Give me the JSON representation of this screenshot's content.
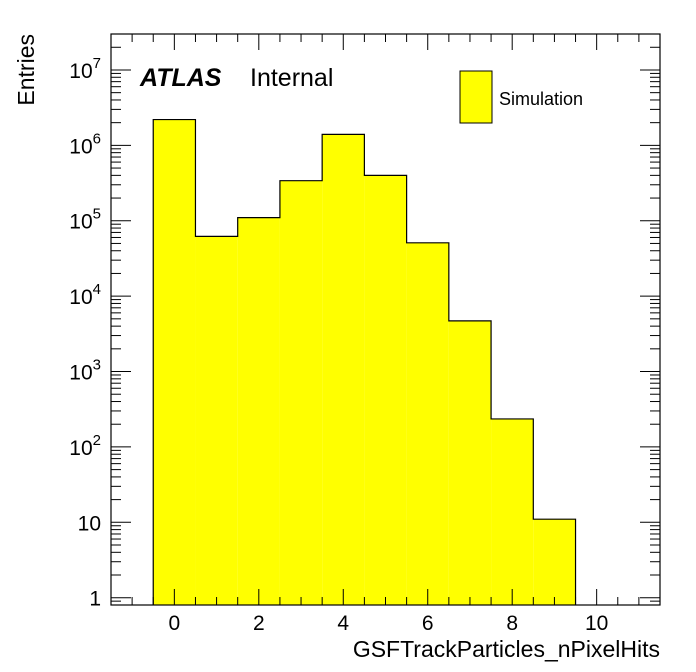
{
  "chart_data": {
    "type": "bar",
    "histogram": true,
    "bin_width": 1,
    "x_centers": [
      0,
      1,
      2,
      3,
      4,
      5,
      6,
      7,
      8,
      9
    ],
    "values": [
      2200000,
      62000,
      110000,
      340000,
      1400000,
      400000,
      51000,
      4700,
      235,
      11
    ],
    "series": [
      {
        "name": "Simulation",
        "color": "#ffff00",
        "edge_color": "#000000"
      }
    ],
    "xlabel": "GSFTrackParticles_nPixelHits",
    "ylabel": "Entries",
    "xlim": [
      -1.5,
      11.5
    ],
    "ylim": [
      0.8,
      30000000
    ],
    "yscale": "log",
    "x_ticks": [
      0,
      2,
      4,
      6,
      8,
      10
    ],
    "x_tick_labels": [
      "0",
      "2",
      "4",
      "6",
      "8",
      "10"
    ],
    "y_ticks": [
      1,
      10,
      100,
      1000,
      10000,
      100000,
      1000000,
      10000000
    ],
    "y_tick_labels": [
      {
        "base": "1",
        "exp": ""
      },
      {
        "base": "10",
        "exp": ""
      },
      {
        "base": "10",
        "exp": "2"
      },
      {
        "base": "10",
        "exp": "3"
      },
      {
        "base": "10",
        "exp": "4"
      },
      {
        "base": "10",
        "exp": "5"
      },
      {
        "base": "10",
        "exp": "6"
      },
      {
        "base": "10",
        "exp": "7"
      }
    ],
    "grid": false,
    "legend_position": "top-right",
    "annotation": {
      "label": "ATLAS",
      "sublabel": "Internal"
    }
  }
}
